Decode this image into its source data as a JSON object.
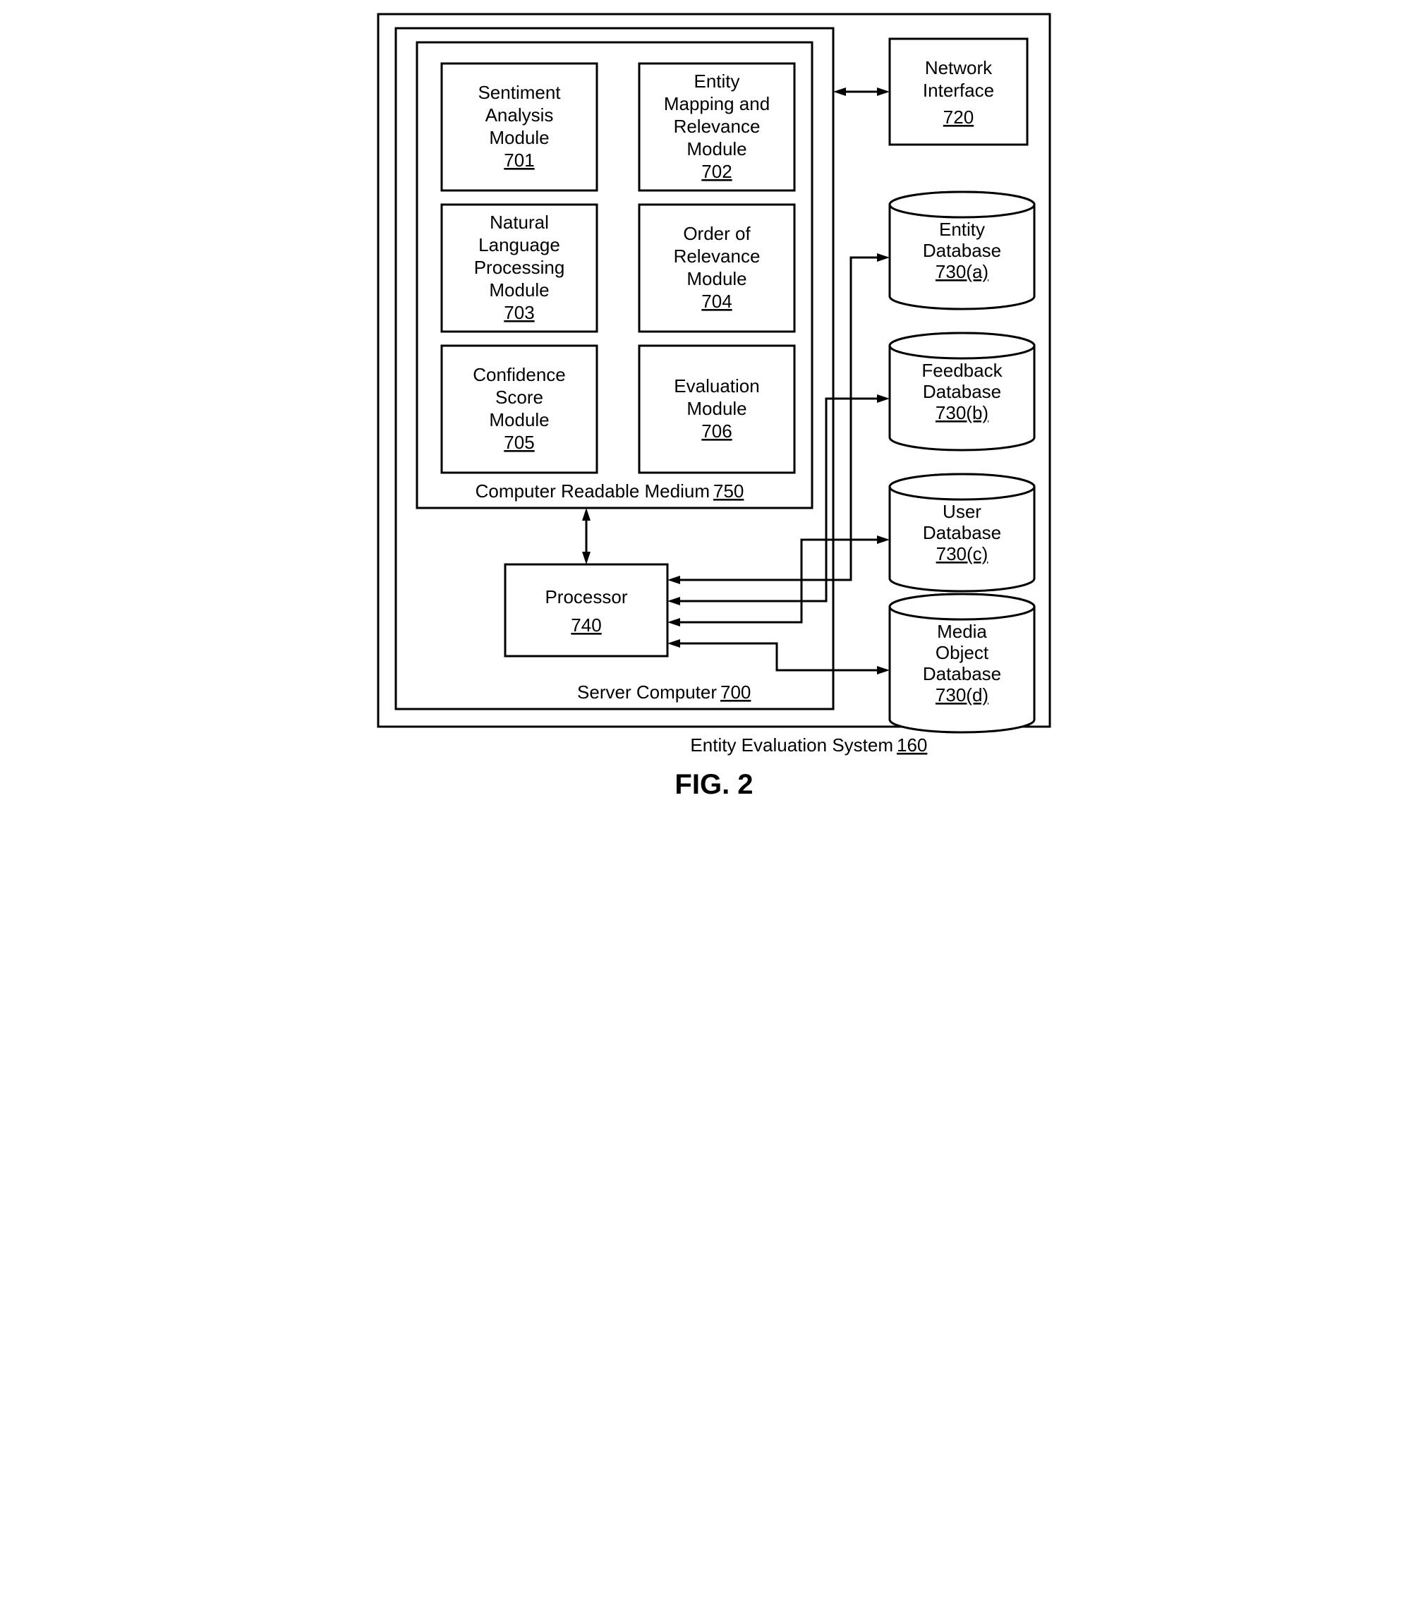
{
  "figure_label": "FIG. 2",
  "outer": {
    "label": "Entity Evaluation System",
    "num": "160"
  },
  "server": {
    "label": "Server Computer",
    "num": "700"
  },
  "crm": {
    "label": "Computer Readable Medium",
    "num": "750"
  },
  "modules": [
    {
      "lines": [
        "Sentiment",
        "Analysis",
        "Module"
      ],
      "num": "701"
    },
    {
      "lines": [
        "Entity",
        "Mapping and",
        "Relevance",
        "Module"
      ],
      "num": "702"
    },
    {
      "lines": [
        "Natural",
        "Language",
        "Processing",
        "Module"
      ],
      "num": "703"
    },
    {
      "lines": [
        "Order of",
        "Relevance",
        "Module"
      ],
      "num": "704"
    },
    {
      "lines": [
        "Confidence",
        "Score",
        "Module"
      ],
      "num": "705"
    },
    {
      "lines": [
        "Evaluation",
        "Module"
      ],
      "num": "706"
    }
  ],
  "processor": {
    "label": "Processor",
    "num": "740"
  },
  "network": {
    "label": "Network",
    "label2": "Interface",
    "num": "720"
  },
  "databases": [
    {
      "lines": [
        "Entity",
        "Database"
      ],
      "num": "730(a)"
    },
    {
      "lines": [
        "Feedback",
        "Database"
      ],
      "num": "730(b)"
    },
    {
      "lines": [
        "User",
        "Database"
      ],
      "num": "730(c)"
    },
    {
      "lines": [
        "Media",
        "Object",
        "Database"
      ],
      "num": "730(d)"
    }
  ],
  "style": {
    "stroke": "#000000",
    "stroke_width": 3,
    "fill": "#ffffff",
    "arrow_len": 18,
    "arrow_w": 12
  }
}
